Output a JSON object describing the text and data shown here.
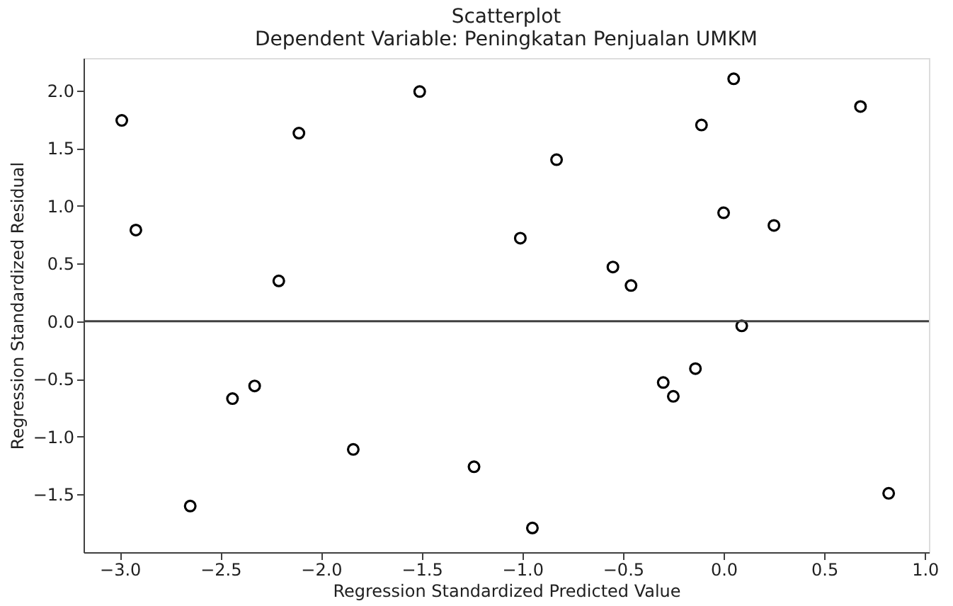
{
  "chart_data": {
    "type": "scatter",
    "title": "Scatterplot",
    "subtitle": "Dependent Variable: Peningkatan Penjualan UMKM",
    "xlabel": "Regression Standardized Predicted Value",
    "ylabel": "Regression Standardized Residual",
    "x": [
      -2.99,
      -2.92,
      -2.11,
      -2.21,
      -1.51,
      0.05,
      0.68,
      -0.11,
      -0.83,
      0.0,
      0.25,
      -1.01,
      -0.55,
      -0.46,
      0.09,
      -0.14,
      -0.3,
      -0.25,
      -1.24,
      -0.95,
      0.82,
      -2.44,
      -2.33,
      -1.84,
      -2.65
    ],
    "series": [
      {
        "color": "#000000",
        "values": [
          1.74,
          0.79,
          1.63,
          0.35,
          1.99,
          2.1,
          1.86,
          1.7,
          1.4,
          0.94,
          0.83,
          0.72,
          0.47,
          0.31,
          -0.04,
          -0.41,
          -0.53,
          -0.65,
          -1.26,
          -1.79,
          -1.49,
          -0.67,
          -0.56,
          -1.11,
          -1.6
        ]
      }
    ],
    "xlim": [
      -3.18,
      1.02
    ],
    "ylim": [
      -2.0,
      2.28
    ],
    "xticks": [
      {
        "value": -3,
        "label": "−3.0"
      },
      {
        "value": -2.5,
        "label": "−2.5"
      },
      {
        "value": -2,
        "label": "−2.0"
      },
      {
        "value": -1.5,
        "label": "−1.5"
      },
      {
        "value": -1,
        "label": "−1.0"
      },
      {
        "value": -0.5,
        "label": "−0.5"
      },
      {
        "value": 0,
        "label": "0.0"
      },
      {
        "value": 0.5,
        "label": "0.5"
      },
      {
        "value": 1,
        "label": "1.0"
      }
    ],
    "yticks": [
      {
        "value": -1.5,
        "label": "−1.5"
      },
      {
        "value": -1,
        "label": "−1.0"
      },
      {
        "value": -0.5,
        "label": "−0.5"
      },
      {
        "value": 0,
        "label": "0.0"
      },
      {
        "value": 0.5,
        "label": "0.5"
      },
      {
        "value": 1,
        "label": "1.0"
      },
      {
        "value": 1.5,
        "label": "1.5"
      },
      {
        "value": 2,
        "label": "2.0"
      }
    ],
    "ref_lines": [
      {
        "axis": "y",
        "value": 0,
        "color": "#404040"
      }
    ],
    "marker": "circle",
    "grid": false
  }
}
